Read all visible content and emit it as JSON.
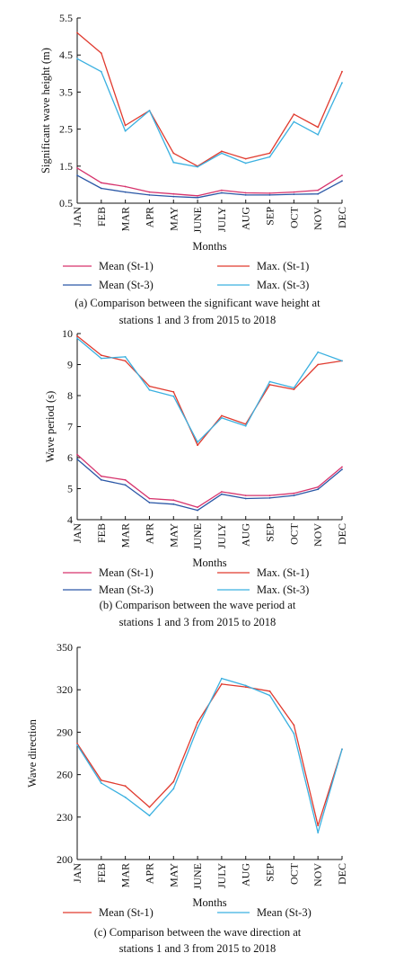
{
  "colors": {
    "mean_st1": "#d6336c",
    "max_st1": "#e03a2e",
    "mean_st3": "#2a57a6",
    "max_st3": "#3ab0e0"
  },
  "chart_data": [
    {
      "type": "line",
      "ylabel": "Significant wave height (m)",
      "xlabel": "Months",
      "categories": [
        "JAN",
        "FEB",
        "MAR",
        "APR",
        "MAY",
        "JUNE",
        "JULY",
        "AUG",
        "SEP",
        "OCT",
        "NOV",
        "DEC"
      ],
      "ylim": [
        0.5,
        5.5
      ],
      "yticks": [
        "0.5",
        "1.5",
        "2.5",
        "3.5",
        "4.5",
        "5.5"
      ],
      "series": [
        {
          "name": "Mean (St-1)",
          "color_key": "mean_st1",
          "values": [
            1.45,
            1.05,
            0.95,
            0.8,
            0.75,
            0.7,
            0.85,
            0.78,
            0.77,
            0.8,
            0.85,
            1.25
          ]
        },
        {
          "name": "Max. (St-1)",
          "color_key": "max_st1",
          "values": [
            5.1,
            4.55,
            2.6,
            3.0,
            1.85,
            1.5,
            1.9,
            1.7,
            1.85,
            2.9,
            2.55,
            4.05
          ]
        },
        {
          "name": "Mean (St-3)",
          "color_key": "mean_st3",
          "values": [
            1.25,
            0.9,
            0.8,
            0.72,
            0.68,
            0.65,
            0.78,
            0.72,
            0.72,
            0.74,
            0.75,
            1.1
          ]
        },
        {
          "name": "Max. (St-3)",
          "color_key": "max_st3",
          "values": [
            4.4,
            4.05,
            2.45,
            3.0,
            1.6,
            1.48,
            1.85,
            1.58,
            1.75,
            2.7,
            2.35,
            3.75
          ]
        }
      ],
      "legend": [
        [
          "Mean (St-1)",
          "Max. (St-1)"
        ],
        [
          "Mean (St-3)",
          "Max. (St-3)"
        ]
      ],
      "caption": [
        "(a) Comparison between the significant wave height at",
        "stations 1 and 3 from 2015 to 2018"
      ]
    },
    {
      "type": "line",
      "ylabel": "Wave period (s)",
      "xlabel": "Months",
      "categories": [
        "JAN",
        "FEB",
        "MAR",
        "APR",
        "MAY",
        "JUNE",
        "JULY",
        "AUG",
        "SEP",
        "OCT",
        "NOV",
        "DEC"
      ],
      "ylim": [
        4,
        10
      ],
      "yticks": [
        "4",
        "5",
        "6",
        "7",
        "8",
        "9",
        "10"
      ],
      "series": [
        {
          "name": "Mean (St-1)",
          "color_key": "mean_st1",
          "values": [
            6.1,
            5.4,
            5.28,
            4.68,
            4.63,
            4.4,
            4.9,
            4.78,
            4.78,
            4.85,
            5.05,
            5.7
          ]
        },
        {
          "name": "Max. (St-1)",
          "color_key": "max_st1",
          "values": [
            9.92,
            9.3,
            9.12,
            8.3,
            8.12,
            6.4,
            7.35,
            7.08,
            8.35,
            8.2,
            9.0,
            9.12
          ]
        },
        {
          "name": "Mean (St-3)",
          "color_key": "mean_st3",
          "values": [
            5.95,
            5.28,
            5.12,
            4.55,
            4.5,
            4.3,
            4.82,
            4.68,
            4.7,
            4.78,
            4.98,
            5.62
          ]
        },
        {
          "name": "Max. (St-3)",
          "color_key": "max_st3",
          "values": [
            9.85,
            9.2,
            9.25,
            8.18,
            7.98,
            6.5,
            7.28,
            7.02,
            8.45,
            8.25,
            9.4,
            9.12
          ]
        }
      ],
      "legend": [
        [
          "Mean (St-1)",
          "Max. (St-1)"
        ],
        [
          "Mean (St-3)",
          "Max. (St-3)"
        ]
      ],
      "caption": [
        "(b) Comparison between the wave period at",
        "stations 1 and 3 from 2015 to 2018"
      ]
    },
    {
      "type": "line",
      "ylabel": "Wave direction",
      "xlabel": "Months",
      "categories": [
        "JAN",
        "FEB",
        "MAR",
        "APR",
        "MAY",
        "JUNE",
        "JULY",
        "AUG",
        "SEP",
        "OCT",
        "NOV",
        "DEC"
      ],
      "ylim": [
        200,
        350
      ],
      "yticks": [
        "200",
        "230",
        "260",
        "290",
        "320",
        "350"
      ],
      "series": [
        {
          "name": "Mean (St-1)",
          "color_key": "max_st1",
          "values": [
            282,
            256,
            252,
            237,
            255,
            297,
            324,
            322,
            319,
            295,
            224,
            278
          ]
        },
        {
          "name": "Mean (St-3)",
          "color_key": "max_st3",
          "values": [
            281,
            254,
            244,
            231,
            250,
            293,
            328,
            323,
            316,
            289,
            219,
            278
          ]
        }
      ],
      "legend": [
        [
          "Mean (St-1)",
          "Mean (St-3)"
        ]
      ],
      "caption": [
        "(c) Comparison between the wave direction at",
        "stations 1 and 3 from 2015 to 2018"
      ]
    }
  ]
}
